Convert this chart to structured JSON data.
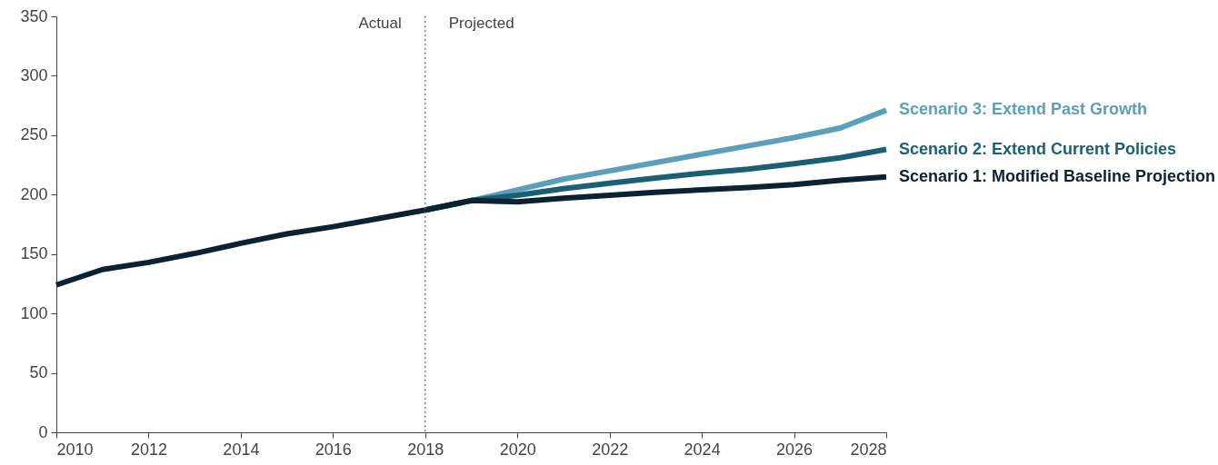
{
  "chart_data": {
    "type": "line",
    "xlim": [
      2010,
      2028
    ],
    "xticks": [
      2010,
      2012,
      2014,
      2016,
      2018,
      2020,
      2022,
      2024,
      2026,
      2028
    ],
    "ylim": [
      0,
      350
    ],
    "yticks": [
      0,
      50,
      100,
      150,
      200,
      250,
      300,
      350
    ],
    "grid": false,
    "legend": false,
    "series": [
      {
        "name": "Scenario 3: Extend Past Growth",
        "color": "#5b9fba",
        "x": [
          2018,
          2019,
          2020,
          2021,
          2022,
          2023,
          2024,
          2025,
          2026,
          2027,
          2028
        ],
        "values": [
          187,
          195,
          204,
          213,
          220,
          227,
          234,
          241,
          248,
          256,
          271
        ]
      },
      {
        "name": "Scenario 2: Extend Current Policies",
        "color": "#1a5f73",
        "x": [
          2018,
          2019,
          2020,
          2021,
          2022,
          2023,
          2024,
          2025,
          2026,
          2027,
          2028
        ],
        "values": [
          187,
          195,
          199.5,
          205,
          209.5,
          214,
          218,
          221.5,
          226,
          231,
          238
        ]
      },
      {
        "name": "Scenario 1: Modified Baseline Projection",
        "color": "#0b2233",
        "x": [
          2010,
          2011,
          2012,
          2013,
          2014,
          2015,
          2016,
          2017,
          2018,
          2019,
          2020,
          2021,
          2022,
          2023,
          2024,
          2025,
          2026,
          2027,
          2028
        ],
        "values": [
          124,
          137,
          143,
          150.5,
          159,
          167,
          173,
          180,
          187,
          195,
          194,
          197,
          199.5,
          202,
          204,
          206,
          208.5,
          212,
          215
        ]
      }
    ],
    "ref_lines": [
      {
        "axis": "x",
        "value": 2018,
        "label": null,
        "color": "#666666",
        "line_style": "dotted"
      }
    ],
    "annotations": [
      {
        "text": "Actual",
        "x": 2018,
        "y": 350
      },
      {
        "text": "Projected",
        "x": 2018,
        "y": 350
      }
    ]
  }
}
